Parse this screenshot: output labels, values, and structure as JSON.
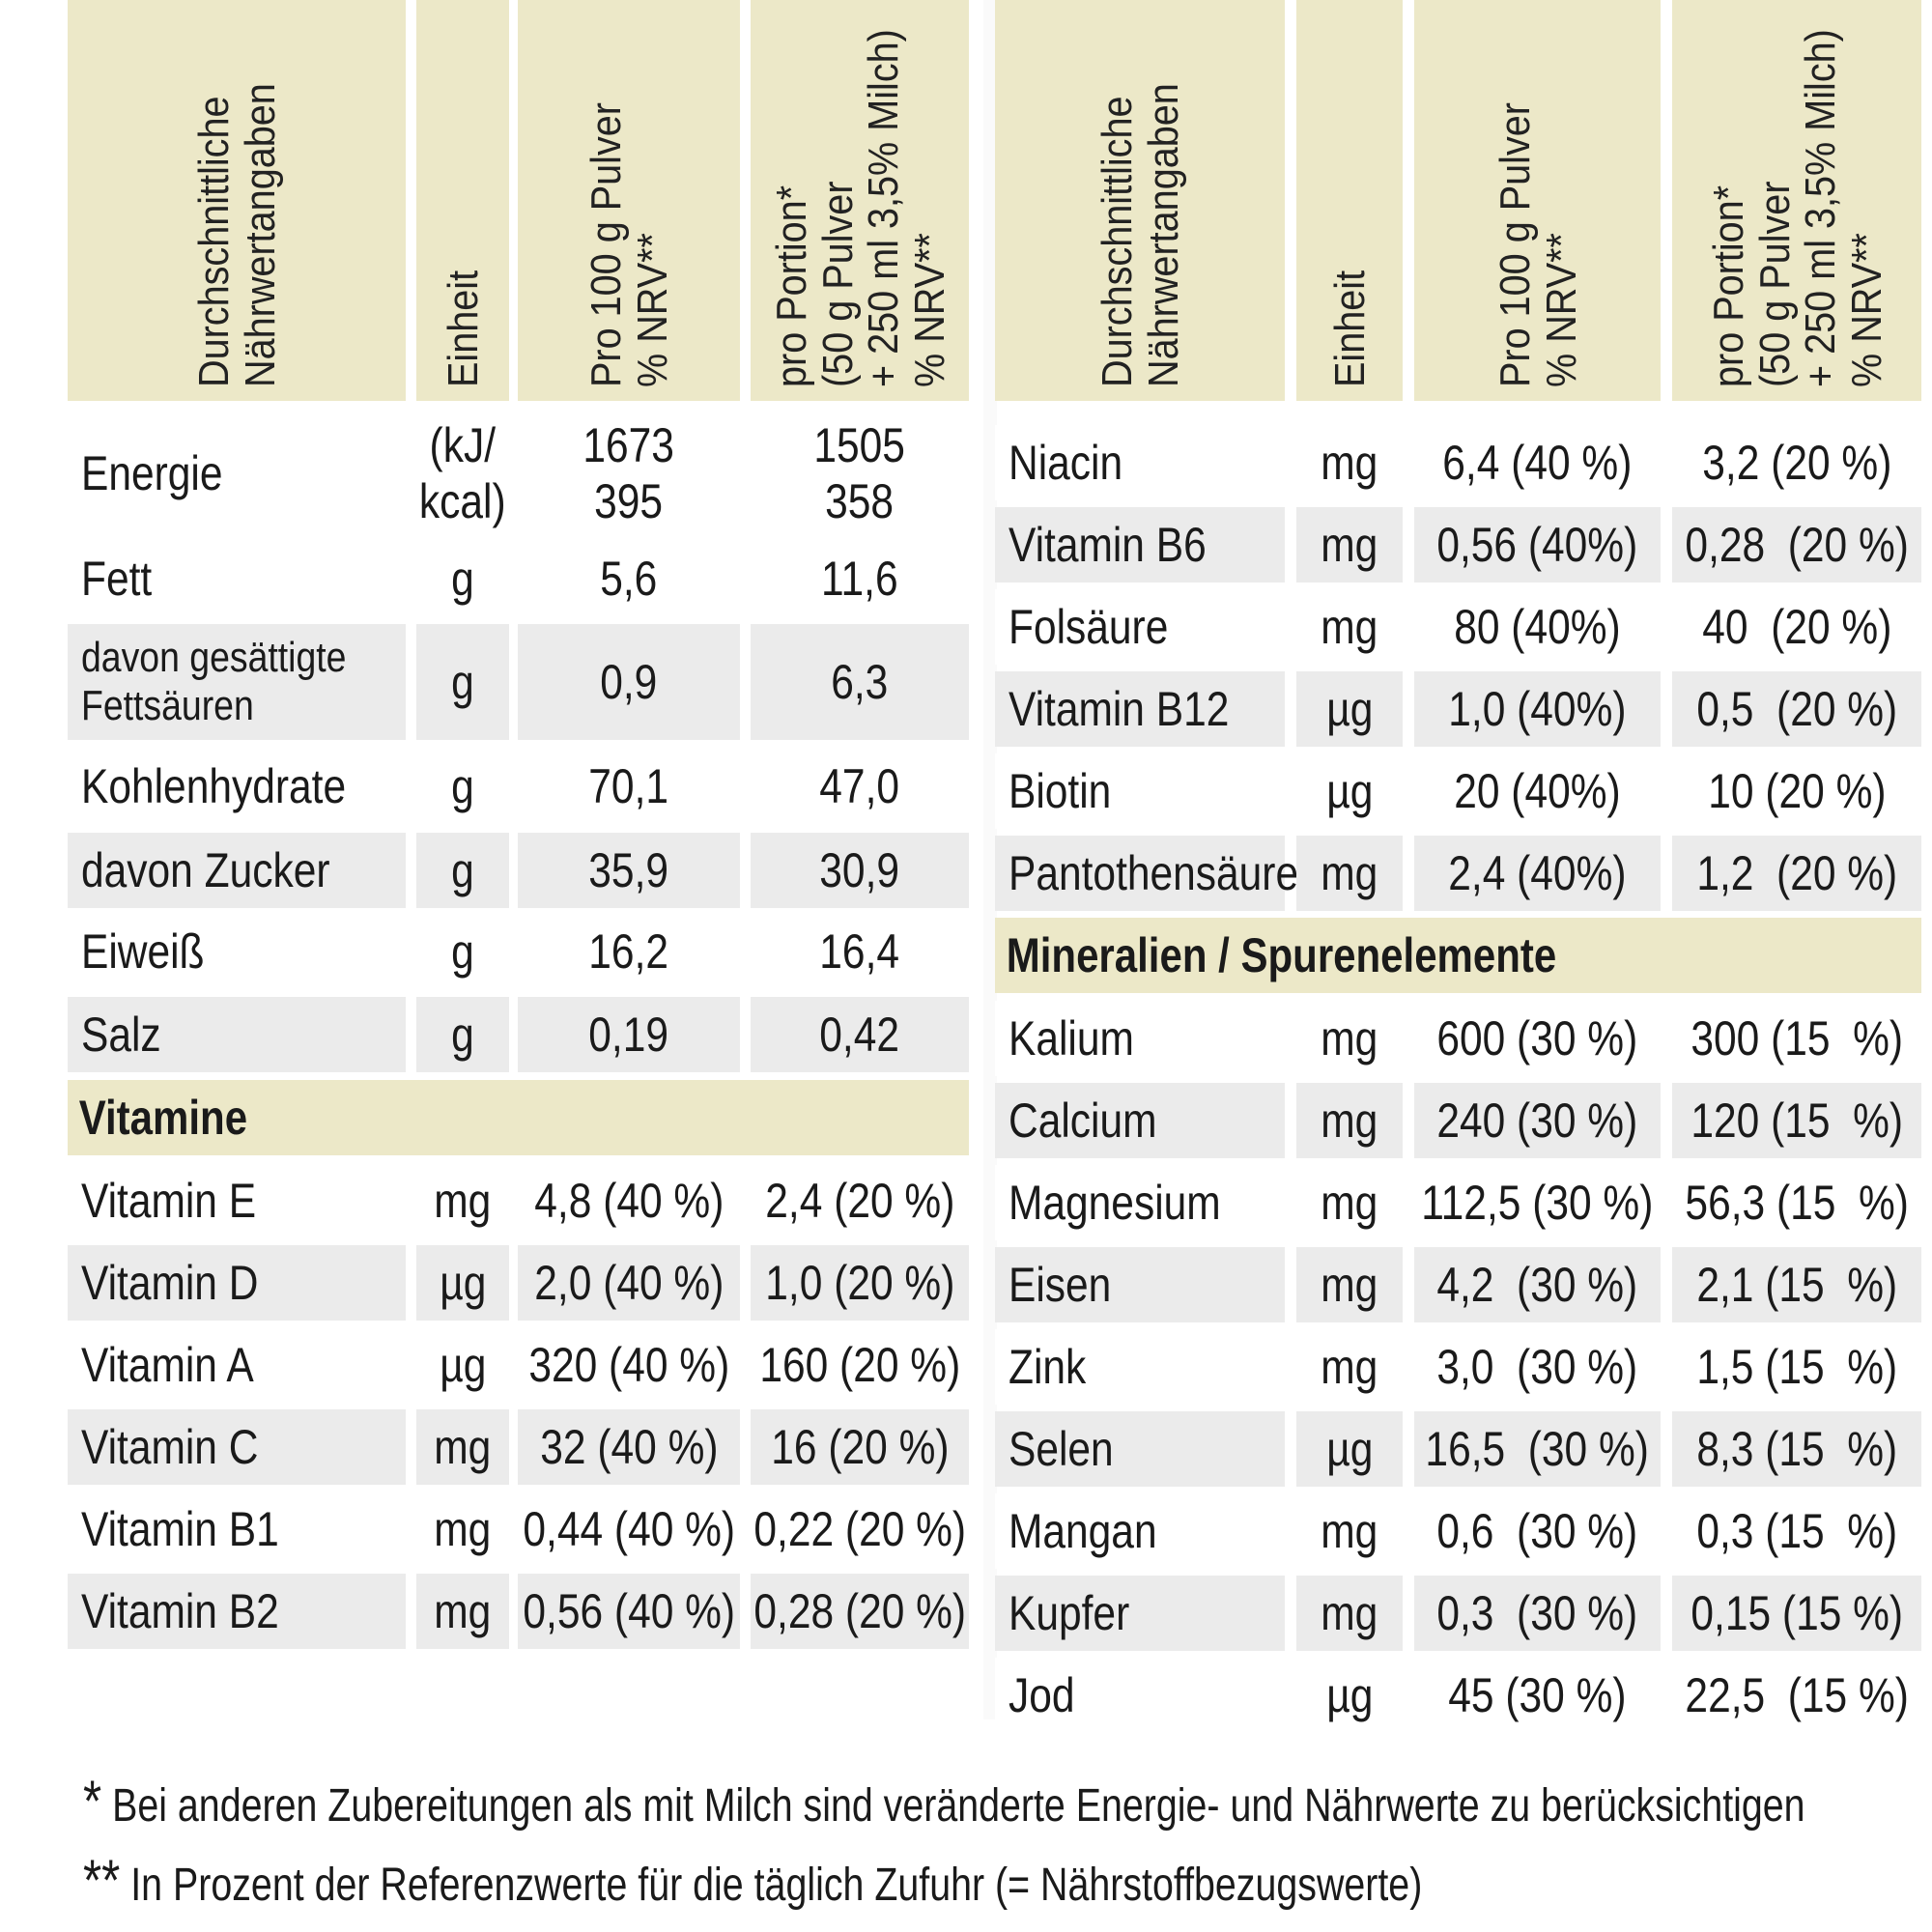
{
  "header_left": {
    "col0": [
      "Durchschnittliche",
      "Nährwertangaben"
    ],
    "col1": [
      "Einheit"
    ],
    "col2": [
      "Pro 100 g Pulver",
      "% NRV**"
    ],
    "col3": [
      "pro Portion*",
      "(50 g Pulver",
      "+ 250 ml 3,5% Milch)",
      "% NRV**"
    ]
  },
  "header_right": {
    "col0": [
      "Durchschnittliche",
      "Nährwertangaben"
    ],
    "col1": [
      "Einheit"
    ],
    "col2": [
      "Pro 100 g Pulver",
      "% NRV**"
    ],
    "col3": [
      "pro Portion*",
      "(50 g Pulver",
      "+ 250 ml 3,5% Milch)",
      "% NRV**"
    ]
  },
  "left_rows": [
    {
      "name": "Energie",
      "unit": "(kJ/\nkcal)",
      "per100": "1673\n395",
      "portion": "1505\n358"
    },
    {
      "name": "Fett",
      "unit": "g",
      "per100": "5,6",
      "portion": "11,6"
    },
    {
      "name": "davon gesättigte\nFettsäuren",
      "unit": "g",
      "per100": "0,9",
      "portion": "6,3"
    },
    {
      "name": "Kohlenhydrate",
      "unit": "g",
      "per100": "70,1",
      "portion": "47,0"
    },
    {
      "name": "davon Zucker",
      "unit": "g",
      "per100": "35,9",
      "portion": "30,9"
    },
    {
      "name": "Eiweiß",
      "unit": "g",
      "per100": "16,2",
      "portion": "16,4"
    },
    {
      "name": "Salz",
      "unit": "g",
      "per100": "0,19",
      "portion": "0,42"
    }
  ],
  "vitamins_title": "Vitamine",
  "vitamin_rows": [
    {
      "name": "Vitamin E",
      "unit": "mg",
      "per100": "4,8 (40 %)",
      "portion": "2,4 (20 %)"
    },
    {
      "name": "Vitamin D",
      "unit": "µg",
      "per100": "2,0 (40 %)",
      "portion": "1,0 (20 %)"
    },
    {
      "name": "Vitamin A",
      "unit": "µg",
      "per100": "320 (40 %)",
      "portion": "160 (20 %)"
    },
    {
      "name": "Vitamin C",
      "unit": "mg",
      "per100": "32 (40 %)",
      "portion": "16 (20 %)"
    },
    {
      "name": "Vitamin B1",
      "unit": "mg",
      "per100": "0,44 (40 %)",
      "portion": "0,22 (20 %)"
    },
    {
      "name": "Vitamin B2",
      "unit": "mg",
      "per100": "0,56 (40 %)",
      "portion": "0,28 (20 %)"
    }
  ],
  "right_rows": [
    {
      "name": "Niacin",
      "unit": "mg",
      "per100": "6,4 (40 %)",
      "portion": "3,2 (20 %)"
    },
    {
      "name": "Vitamin B6",
      "unit": "mg",
      "per100": "0,56 (40%)",
      "portion": "0,28  (20 %)"
    },
    {
      "name": "Folsäure",
      "unit": "mg",
      "per100": "80 (40%)",
      "portion": "40  (20 %)"
    },
    {
      "name": "Vitamin B12",
      "unit": "µg",
      "per100": "1,0 (40%)",
      "portion": "0,5  (20 %)"
    },
    {
      "name": "Biotin",
      "unit": "µg",
      "per100": "20 (40%)",
      "portion": "10 (20 %)"
    },
    {
      "name": "Pantothensäure",
      "unit": "mg",
      "per100": "2,4 (40%)",
      "portion": "1,2  (20 %)"
    }
  ],
  "minerals_title": "Mineralien / Spurenelemente",
  "mineral_rows": [
    {
      "name": "Kalium",
      "unit": "mg",
      "per100": "600 (30 %)",
      "portion": "300 (15  %)"
    },
    {
      "name": "Calcium",
      "unit": "mg",
      "per100": "240 (30 %)",
      "portion": "120 (15  %)"
    },
    {
      "name": "Magnesium",
      "unit": "mg",
      "per100": "112,5 (30 %)",
      "portion": "56,3 (15  %)"
    },
    {
      "name": "Eisen",
      "unit": "mg",
      "per100": "4,2  (30 %)",
      "portion": "2,1 (15  %)"
    },
    {
      "name": "Zink",
      "unit": "mg",
      "per100": "3,0  (30 %)",
      "portion": "1,5 (15  %)"
    },
    {
      "name": "Selen",
      "unit": "µg",
      "per100": "16,5  (30 %)",
      "portion": "8,3 (15  %)"
    },
    {
      "name": "Mangan",
      "unit": "mg",
      "per100": "0,6  (30 %)",
      "portion": "0,3 (15  %)"
    },
    {
      "name": "Kupfer",
      "unit": "mg",
      "per100": "0,3  (30 %)",
      "portion": "0,15 (15 %)"
    },
    {
      "name": "Jod",
      "unit": "µg",
      "per100": "45 (30 %)",
      "portion": "22,5  (15 %)"
    }
  ],
  "footnotes": [
    {
      "mark": "*",
      "text": "Bei anderen Zubereitungen als mit Milch sind veränderte Energie- und Nährwerte zu berücksichtigen"
    },
    {
      "mark": "**",
      "text": "In Prozent der Referenzwerte für die täglich Zufuhr (= Nährstoffbezugswerte)"
    }
  ]
}
